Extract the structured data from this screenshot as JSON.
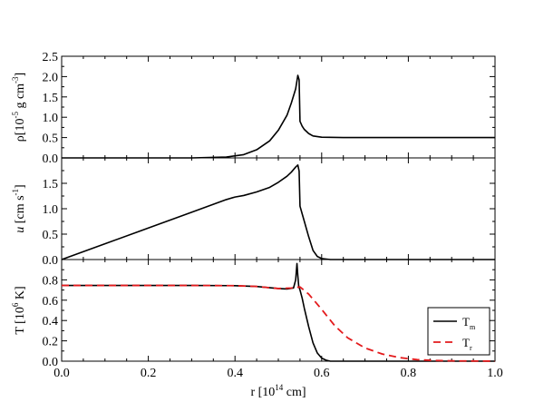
{
  "chart_data": [
    {
      "type": "line",
      "panel": "density",
      "ylabel": {
        "symbol": "ρ",
        "text_before_sup": "[10",
        "sup": "-5",
        "text_after_sup": " g cm",
        "sup2": "-3",
        "text_end": "]"
      },
      "xlim": [
        0.0,
        1.0
      ],
      "ylim": [
        0.0,
        2.5
      ],
      "yticks": [
        "0.0",
        "0.5",
        "1.0",
        "1.5",
        "2.0",
        "2.5"
      ],
      "ytick_values": [
        0.0,
        0.5,
        1.0,
        1.5,
        2.0,
        2.5
      ],
      "series": [
        {
          "color": "#000000",
          "style": "solid",
          "x": [
            0.0,
            0.3,
            0.38,
            0.42,
            0.45,
            0.48,
            0.5,
            0.52,
            0.53,
            0.54,
            0.545,
            0.548,
            0.55,
            0.555,
            0.56,
            0.57,
            0.58,
            0.6,
            0.65,
            0.7,
            0.8,
            0.9,
            1.0
          ],
          "y": [
            0.0,
            0.0,
            0.02,
            0.08,
            0.2,
            0.42,
            0.68,
            1.05,
            1.35,
            1.7,
            2.03,
            1.92,
            0.9,
            0.78,
            0.7,
            0.6,
            0.54,
            0.51,
            0.5,
            0.5,
            0.5,
            0.5,
            0.5
          ]
        }
      ]
    },
    {
      "type": "line",
      "panel": "velocity",
      "ylabel": {
        "symbol": "u",
        "text_before_sup": " [cm s",
        "sup": "-1",
        "text_end": "]"
      },
      "xlim": [
        0.0,
        1.0
      ],
      "ylim": [
        0.0,
        2.0
      ],
      "yticks": [
        "0.0",
        "0.5",
        "1.0",
        "1.5"
      ],
      "ytick_values": [
        0.0,
        0.5,
        1.0,
        1.5
      ],
      "series": [
        {
          "color": "#000000",
          "style": "solid",
          "x": [
            0.0,
            0.1,
            0.2,
            0.3,
            0.38,
            0.4,
            0.42,
            0.45,
            0.48,
            0.5,
            0.52,
            0.53,
            0.54,
            0.545,
            0.548,
            0.55,
            0.555,
            0.56,
            0.57,
            0.58,
            0.59,
            0.6,
            0.62,
            0.65,
            1.0
          ],
          "y": [
            0.0,
            0.31,
            0.62,
            0.93,
            1.18,
            1.23,
            1.26,
            1.33,
            1.42,
            1.52,
            1.64,
            1.72,
            1.82,
            1.86,
            1.74,
            1.05,
            0.9,
            0.75,
            0.45,
            0.18,
            0.06,
            0.02,
            0.0,
            0.0,
            0.0
          ]
        }
      ]
    },
    {
      "type": "line",
      "panel": "temperature",
      "ylabel": {
        "symbol": "T",
        "text_before_sup": " [10",
        "sup": "6",
        "text_end": " K]"
      },
      "xlabel": {
        "text_before_sup": "r [10",
        "sup": "14",
        "text_end": " cm]"
      },
      "xlim": [
        0.0,
        1.0
      ],
      "ylim": [
        0.0,
        1.0
      ],
      "yticks": [
        "0.0",
        "0.2",
        "0.4",
        "0.6",
        "0.8"
      ],
      "ytick_values": [
        0.0,
        0.2,
        0.4,
        0.6,
        0.8
      ],
      "xticks": [
        "0.0",
        "0.2",
        "0.4",
        "0.6",
        "0.8",
        "1.0"
      ],
      "xtick_values": [
        0.0,
        0.2,
        0.4,
        0.6,
        0.8,
        1.0
      ],
      "legend": {
        "position": "lower-right"
      },
      "series": [
        {
          "label_main": "T",
          "label_sub": "m",
          "color": "#000000",
          "style": "solid",
          "x": [
            0.0,
            0.1,
            0.2,
            0.3,
            0.4,
            0.45,
            0.5,
            0.52,
            0.535,
            0.54,
            0.543,
            0.545,
            0.547,
            0.55,
            0.555,
            0.56,
            0.57,
            0.58,
            0.59,
            0.6,
            0.61,
            0.62,
            0.64,
            0.7,
            1.0
          ],
          "y": [
            0.745,
            0.745,
            0.745,
            0.745,
            0.743,
            0.735,
            0.715,
            0.71,
            0.72,
            0.8,
            0.96,
            0.84,
            0.74,
            0.7,
            0.62,
            0.52,
            0.34,
            0.18,
            0.08,
            0.03,
            0.01,
            0.0,
            0.0,
            0.0,
            0.0
          ]
        },
        {
          "label_main": "T",
          "label_sub": "r",
          "color": "#e31a1c",
          "style": "dashed",
          "x": [
            0.0,
            0.1,
            0.2,
            0.3,
            0.4,
            0.45,
            0.5,
            0.53,
            0.55,
            0.57,
            0.6,
            0.63,
            0.66,
            0.7,
            0.74,
            0.78,
            0.82,
            0.86,
            0.9,
            1.0
          ],
          "y": [
            0.745,
            0.745,
            0.745,
            0.745,
            0.743,
            0.735,
            0.715,
            0.72,
            0.73,
            0.66,
            0.51,
            0.35,
            0.23,
            0.13,
            0.07,
            0.035,
            0.015,
            0.007,
            0.003,
            0.0
          ]
        }
      ]
    }
  ]
}
